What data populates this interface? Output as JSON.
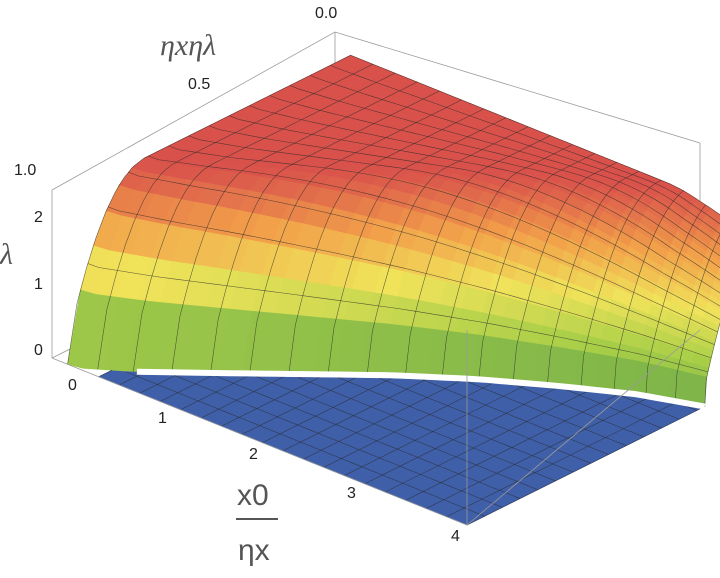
{
  "chart_data": {
    "type": "surface3d",
    "title": "",
    "axes": {
      "x": {
        "label_numerator": "x0",
        "label_denominator": "ηx",
        "range": [
          0,
          4
        ],
        "ticks": [
          "0",
          "1",
          "2",
          "3",
          "4"
        ]
      },
      "y": {
        "label": "ηxηλ",
        "range": [
          0,
          1
        ],
        "ticks": [
          "0.0",
          "0.5",
          "1.0"
        ]
      },
      "z": {
        "label": "λ",
        "range": [
          0,
          2.2
        ],
        "ticks": [
          "0",
          "1",
          "2"
        ]
      }
    },
    "surface": {
      "description_levels": {
        "low_plateau": 0,
        "high_plateau": 2.2
      },
      "boundary_curve": [
        {
          "x": 0.6,
          "y": 0.08
        },
        {
          "x": 1.0,
          "y": 0.19
        },
        {
          "x": 1.5,
          "y": 0.33
        },
        {
          "x": 2.0,
          "y": 0.47
        },
        {
          "x": 2.5,
          "y": 0.59
        },
        {
          "x": 3.0,
          "y": 0.69
        },
        {
          "x": 3.5,
          "y": 0.78
        },
        {
          "x": 4.0,
          "y": 0.84
        }
      ],
      "colors": {
        "low": "#3f5fa8",
        "mid_green": "#8fc24a",
        "mid_yellow": "#f1e05a",
        "high": "#d8504a"
      }
    }
  }
}
